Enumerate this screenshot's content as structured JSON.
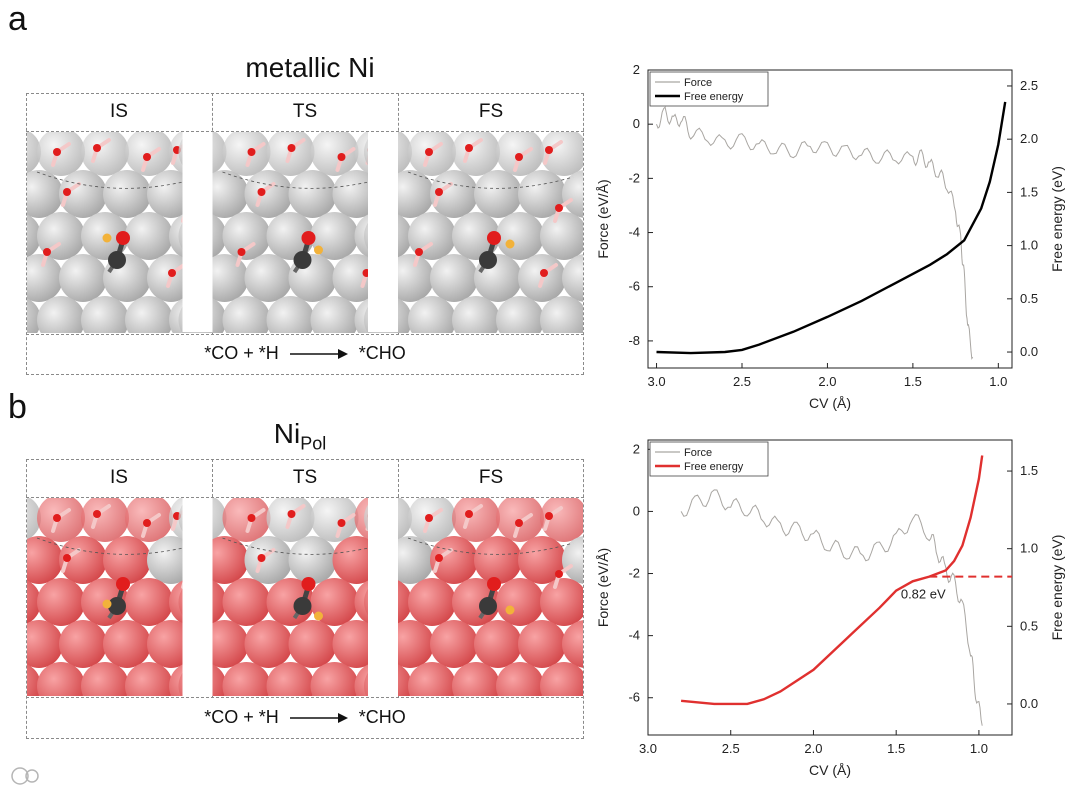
{
  "panels": [
    {
      "letter": "a",
      "title": "metallic Ni",
      "states": [
        "IS",
        "TS",
        "FS"
      ],
      "reaction": {
        "left": "*CO + *H",
        "right": "*CHO"
      }
    },
    {
      "letter": "b",
      "title_main": "Ni",
      "title_sub": "Pol",
      "states": [
        "IS",
        "TS",
        "FS"
      ],
      "reaction": {
        "left": "*CO + *H",
        "right": "*CHO"
      }
    }
  ],
  "colors": {
    "ni_atom": "#c9c9c9",
    "ni_pol_atom": "#e46d6f",
    "oxygen": "#e11d1d",
    "carbon": "#3a3a3a",
    "hydrogen": "#f2b23a",
    "water_h": "#f4c8c8",
    "force_line": "#a9a6a2",
    "free_energy_a": "#000000",
    "free_energy_b": "#e0302f"
  },
  "chart_data": [
    {
      "type": "line",
      "xlabel": "CV (Å)",
      "ylabel_left": "Force (eV/Å)",
      "ylabel_right": "Free energy (eV)",
      "xlim": [
        3.05,
        0.92
      ],
      "x_ticks": [
        3.0,
        2.5,
        2.0,
        1.5,
        1.0
      ],
      "ylim_left": [
        -9,
        2
      ],
      "left_ticks": [
        2,
        0,
        -2,
        -4,
        -6,
        -8
      ],
      "ylim_right": [
        -0.15,
        2.65
      ],
      "right_ticks": [
        0.0,
        0.5,
        1.0,
        1.5,
        2.0,
        2.5
      ],
      "legend": [
        "Force",
        "Free energy"
      ],
      "legend_position": "top-left",
      "series": [
        {
          "name": "Force",
          "axis": "left",
          "x": [
            3.0,
            2.95,
            2.9,
            2.85,
            2.8,
            2.7,
            2.6,
            2.5,
            2.4,
            2.3,
            2.2,
            2.1,
            2.0,
            1.9,
            1.8,
            1.7,
            1.6,
            1.5,
            1.45,
            1.4,
            1.35,
            1.3,
            1.25,
            1.22,
            1.2,
            1.18,
            1.15
          ],
          "y": [
            0.0,
            0.4,
            0.1,
            0.2,
            -0.3,
            -0.5,
            -0.7,
            -0.6,
            -0.8,
            -0.9,
            -1.0,
            -0.8,
            -0.9,
            -1.0,
            -1.1,
            -1.2,
            -1.2,
            -1.3,
            -1.2,
            -1.5,
            -1.8,
            -2.2,
            -3.2,
            -4.3,
            -5.6,
            -7.4,
            -8.6
          ]
        },
        {
          "name": "Free energy",
          "axis": "right",
          "x": [
            3.0,
            2.8,
            2.6,
            2.5,
            2.4,
            2.2,
            2.0,
            1.8,
            1.6,
            1.4,
            1.3,
            1.2,
            1.1,
            1.05,
            1.0,
            0.96
          ],
          "y": [
            0.0,
            -0.01,
            0.0,
            0.02,
            0.07,
            0.19,
            0.33,
            0.48,
            0.65,
            0.82,
            0.92,
            1.05,
            1.35,
            1.6,
            1.95,
            2.35
          ]
        }
      ]
    },
    {
      "type": "line",
      "xlabel": "CV (Å)",
      "ylabel_left": "Force (eV/Å)",
      "ylabel_right": "Free energy (eV)",
      "xlim": [
        3.0,
        0.8
      ],
      "x_ticks": [
        3.0,
        2.5,
        2.0,
        1.5,
        1.0
      ],
      "ylim_left": [
        -7.2,
        2.3
      ],
      "left_ticks": [
        2,
        0,
        -2,
        -4,
        -6
      ],
      "ylim_right": [
        -0.2,
        1.7
      ],
      "right_ticks": [
        0.0,
        0.5,
        1.0,
        1.5
      ],
      "legend": [
        "Force",
        "Free energy"
      ],
      "legend_position": "top-left",
      "annotation": {
        "text": "0.82 eV",
        "value": 0.82
      },
      "series": [
        {
          "name": "Force",
          "axis": "left",
          "x": [
            2.8,
            2.7,
            2.6,
            2.5,
            2.4,
            2.3,
            2.2,
            2.1,
            2.0,
            1.9,
            1.8,
            1.7,
            1.6,
            1.5,
            1.4,
            1.3,
            1.25,
            1.2,
            1.15,
            1.1,
            1.05,
            1.02,
            0.98
          ],
          "y": [
            0.0,
            0.3,
            0.5,
            0.2,
            0.1,
            -0.2,
            -0.5,
            -0.6,
            -0.8,
            -1.1,
            -1.3,
            -1.4,
            -1.2,
            -0.9,
            -0.2,
            -0.7,
            -1.3,
            -1.9,
            -2.3,
            -3.0,
            -4.5,
            -5.8,
            -6.9
          ]
        },
        {
          "name": "Free energy",
          "axis": "right",
          "x": [
            2.8,
            2.6,
            2.4,
            2.3,
            2.2,
            2.0,
            1.8,
            1.6,
            1.5,
            1.4,
            1.3,
            1.2,
            1.15,
            1.1,
            1.05,
            1.0,
            0.98
          ],
          "y": [
            0.02,
            0.0,
            0.0,
            0.03,
            0.08,
            0.22,
            0.42,
            0.62,
            0.73,
            0.79,
            0.82,
            0.86,
            0.92,
            1.02,
            1.2,
            1.45,
            1.6
          ]
        }
      ]
    }
  ]
}
